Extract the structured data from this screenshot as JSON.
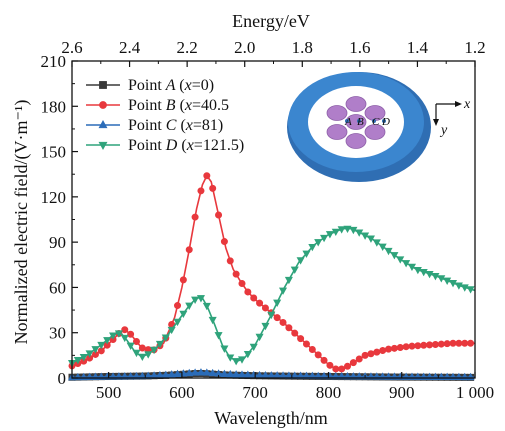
{
  "chart_data": {
    "type": "line",
    "xlabel": "Wavelength/nm",
    "ylabel": "Normalized electric field/(V·m⁻¹)",
    "top_xlabel": "Energy/eV",
    "xlim": [
      450,
      1000
    ],
    "ylim": [
      0,
      210
    ],
    "x_ticks": [
      500,
      600,
      700,
      800,
      900,
      1000
    ],
    "x_tick_labels": [
      "500",
      "600",
      "700",
      "800",
      "900",
      "1 000"
    ],
    "y_ticks": [
      0,
      30,
      60,
      90,
      120,
      150,
      180,
      210
    ],
    "y_tick_labels": [
      "0",
      "30",
      "60",
      "90",
      "120",
      "150",
      "180",
      "210"
    ],
    "top_ticks": [
      2.6,
      2.4,
      2.2,
      2.0,
      1.8,
      1.6,
      1.4,
      1.2
    ],
    "top_tick_labels": [
      "2.6",
      "2.4",
      "2.2",
      "2.0",
      "1.8",
      "1.6",
      "1.4",
      "1.2"
    ],
    "legend_position": "top-left",
    "grid": false,
    "series": [
      {
        "name_prefix": "Point ",
        "name_letter": "A",
        "name_var": "x",
        "name_eq": "=0)",
        "color": "#3a3a3a",
        "marker": "square",
        "x": [
          450,
          500,
          550,
          580,
          600,
          620,
          630,
          640,
          660,
          700,
          750,
          800,
          850,
          900,
          950,
          1000
        ],
        "y": [
          0.5,
          1.0,
          1.3,
          1.8,
          2.4,
          3.0,
          3.0,
          2.6,
          2.0,
          1.5,
          1.2,
          1.0,
          0.8,
          0.6,
          0.5,
          0.4
        ]
      },
      {
        "name_prefix": "Point ",
        "name_letter": "B",
        "name_var": "x",
        "name_eq": "=40.5",
        "color": "#e8383d",
        "marker": "circle",
        "x": [
          450,
          470,
          490,
          505,
          515,
          522,
          530,
          545,
          560,
          575,
          590,
          600,
          610,
          620,
          628,
          634,
          640,
          650,
          660,
          670,
          680,
          690,
          700,
          720,
          740,
          760,
          780,
          800,
          810,
          820,
          830,
          850,
          880,
          910,
          940,
          970,
          1000
        ],
        "y": [
          8,
          12,
          18,
          25,
          30,
          32,
          29,
          20,
          18,
          23,
          40,
          60,
          85,
          112,
          128,
          134,
          130,
          108,
          86,
          72,
          64,
          57,
          52,
          44,
          36,
          27,
          18,
          9,
          6,
          6,
          9,
          15,
          19,
          21,
          22,
          23,
          23
        ]
      },
      {
        "name_prefix": "Point ",
        "name_letter": "C",
        "name_var": "x",
        "name_eq": "=81)",
        "color": "#2b6cb8",
        "marker": "triangle-up",
        "x": [
          450,
          500,
          550,
          580,
          600,
          620,
          630,
          640,
          660,
          700,
          750,
          800,
          850,
          900,
          950,
          1000
        ],
        "y": [
          0.4,
          0.8,
          1.2,
          2.0,
          2.8,
          3.5,
          3.6,
          3.2,
          2.5,
          1.8,
          1.4,
          1.1,
          0.9,
          0.7,
          0.6,
          0.5
        ]
      },
      {
        "name_prefix": "Point ",
        "name_letter": "D",
        "name_var": "x",
        "name_eq": "=121.5)",
        "color": "#2fa37b",
        "marker": "triangle-down",
        "x": [
          450,
          470,
          490,
          505,
          512,
          518,
          525,
          535,
          545,
          555,
          565,
          580,
          595,
          610,
          620,
          628,
          635,
          645,
          655,
          665,
          675,
          685,
          700,
          720,
          740,
          760,
          780,
          800,
          820,
          830,
          840,
          860,
          880,
          900,
          920,
          950,
          980,
          1000
        ],
        "y": [
          10,
          15,
          22,
          28,
          30,
          29,
          25,
          18,
          14,
          16,
          20,
          28,
          38,
          48,
          53,
          53,
          47,
          35,
          22,
          14,
          11,
          13,
          22,
          40,
          60,
          77,
          88,
          95,
          99,
          99,
          97,
          92,
          85,
          78,
          72,
          67,
          61,
          58
        ]
      }
    ]
  },
  "inset": {
    "labels": [
      "A",
      "B",
      "C",
      "D"
    ],
    "x_axis": "x",
    "y_axis": "y"
  }
}
